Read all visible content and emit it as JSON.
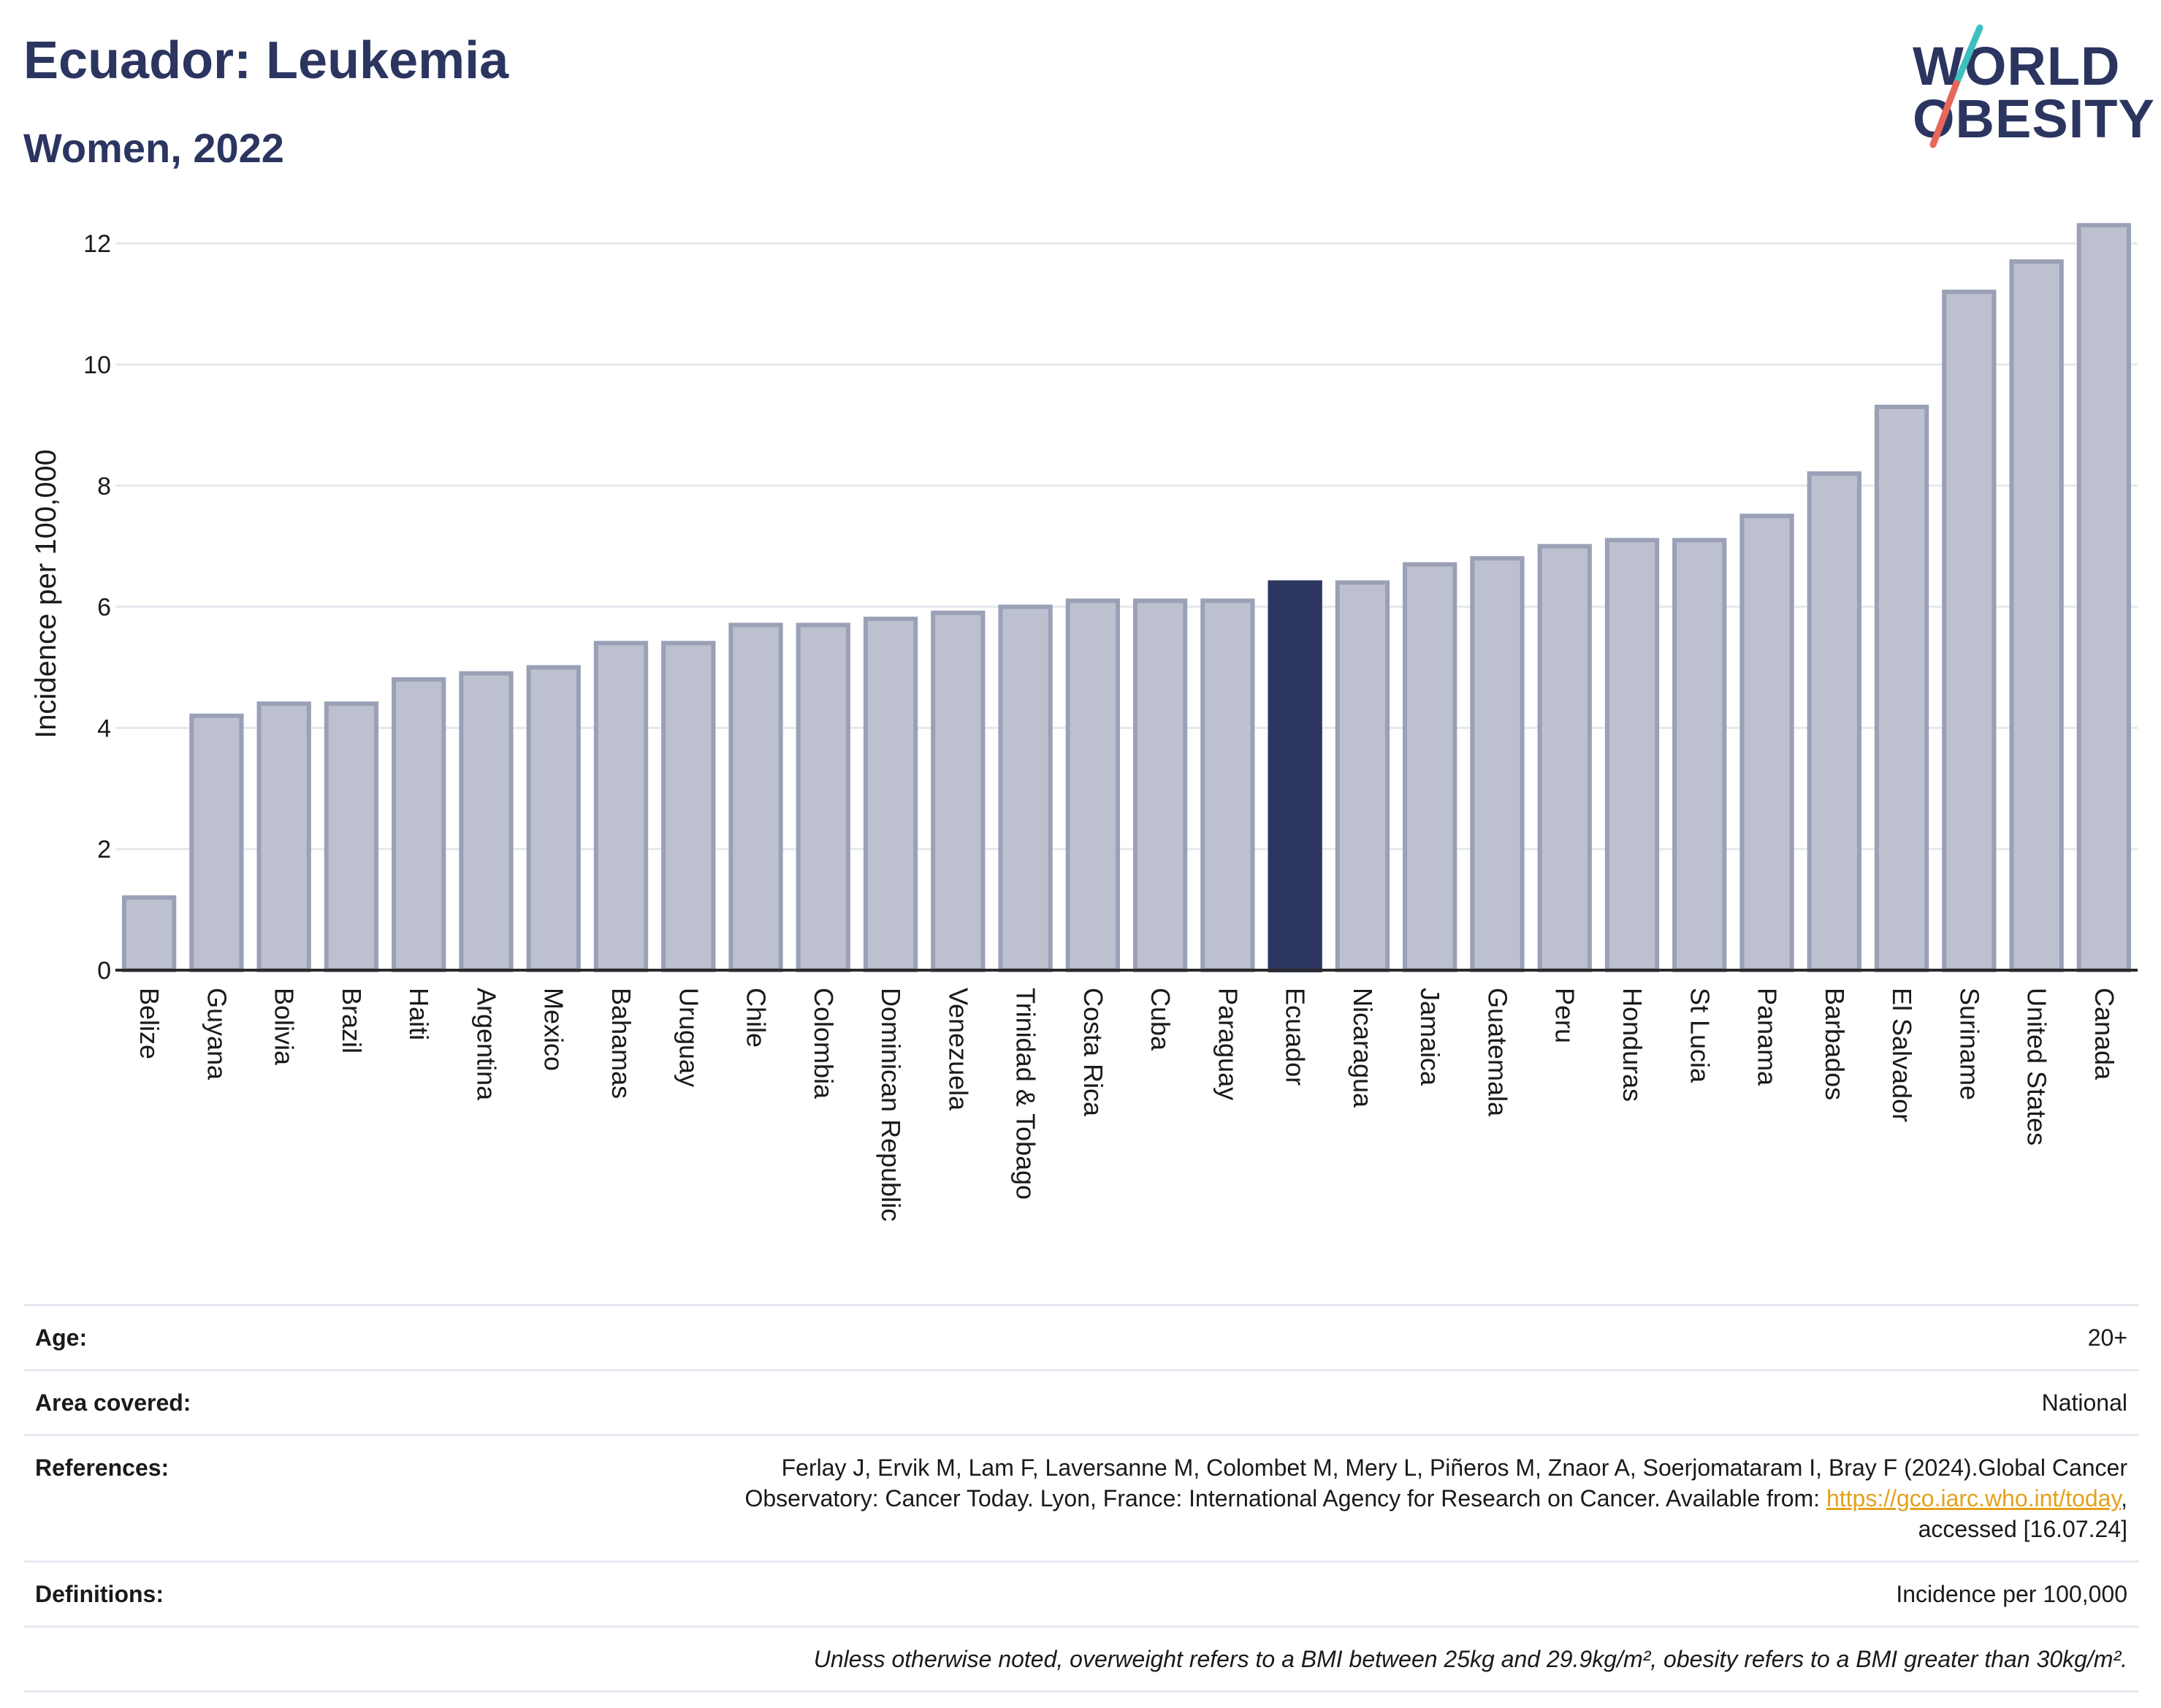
{
  "header": {
    "title": "Ecuador: Leukemia",
    "subtitle": "Women, 2022"
  },
  "logo": {
    "line1": "WORLD",
    "line2": "OBESITY",
    "colors": {
      "text": "#2b3560",
      "slash_top": "#3dbfbf",
      "slash_bottom": "#e8665a"
    }
  },
  "chart_data": {
    "type": "bar",
    "title": "Ecuador: Leukemia",
    "subtitle": "Women, 2022",
    "ylabel": "Incidence per 100,000",
    "xlabel": "",
    "ylim": [
      0,
      12.4
    ],
    "yticks": [
      0,
      2,
      4,
      6,
      8,
      10,
      12
    ],
    "grid": true,
    "highlight": "Ecuador",
    "colors": {
      "bar": "#bdc1cf",
      "bar_border": "#9aa0b5",
      "highlight": "#2b3560",
      "grid": "#e6e8ee",
      "axis": "#2b2b2b"
    },
    "categories": [
      "Belize",
      "Guyana",
      "Bolivia",
      "Brazil",
      "Haiti",
      "Argentina",
      "Mexico",
      "Bahamas",
      "Uruguay",
      "Chile",
      "Colombia",
      "Dominican Republic",
      "Venezuela",
      "Trinidad & Tobago",
      "Costa Rica",
      "Cuba",
      "Paraguay",
      "Ecuador",
      "Nicaragua",
      "Jamaica",
      "Guatemala",
      "Peru",
      "Honduras",
      "St Lucia",
      "Panama",
      "Barbados",
      "El Salvador",
      "Suriname",
      "United States",
      "Canada"
    ],
    "values": [
      1.2,
      4.2,
      4.4,
      4.4,
      4.8,
      4.9,
      5.0,
      5.4,
      5.4,
      5.7,
      5.7,
      5.8,
      5.9,
      6.0,
      6.1,
      6.1,
      6.1,
      6.4,
      6.4,
      6.7,
      6.8,
      7.0,
      7.1,
      7.1,
      7.5,
      8.2,
      9.3,
      11.2,
      11.7,
      12.3
    ]
  },
  "info": {
    "age": {
      "label": "Age:",
      "value": "20+"
    },
    "area": {
      "label": "Area covered:",
      "value": "National"
    },
    "references": {
      "label": "References:",
      "line1": "Ferlay J, Ervik M, Lam F, Laversanne M, Colombet M, Mery L, Piñeros M, Znaor A, Soerjomataram I, Bray F (2024).Global Cancer",
      "line2_pre": "Observatory: Cancer Today. Lyon, France: International Agency for Research on Cancer. Available from: ",
      "link": "https://gco.iarc.who.int/today",
      "line2_post": ",",
      "line3": "accessed [16.07.24]"
    },
    "definitions": {
      "label": "Definitions:",
      "value": "Incidence per 100,000"
    },
    "note": "Unless otherwise noted, overweight refers to a BMI between 25kg and 29.9kg/m², obesity refers to a BMI greater than 30kg/m²."
  }
}
